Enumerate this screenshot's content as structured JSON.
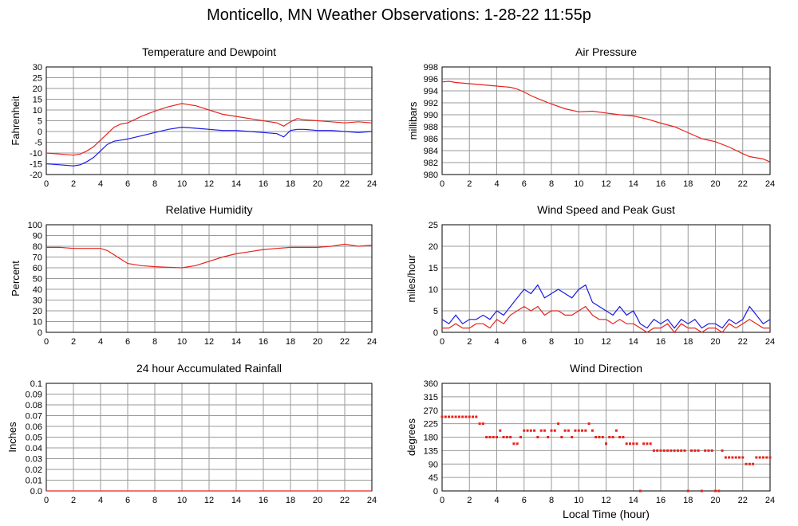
{
  "title": "Monticello, MN Weather Observations: 1-28-22 11:55p",
  "colors": {
    "primary": "#e8231e",
    "secondary": "#1a1ae6",
    "grid": "#9a9a9a"
  },
  "chart_data": [
    {
      "id": "temp",
      "type": "line",
      "title": "Temperature and Dewpoint",
      "xlabel": "",
      "ylabel": "Fahrenheit",
      "xlim": [
        0,
        24
      ],
      "ylim": [
        -20,
        30
      ],
      "xticks": [
        0,
        2,
        4,
        6,
        8,
        10,
        12,
        14,
        16,
        18,
        20,
        22,
        24
      ],
      "yticks": [
        -20,
        -15,
        -10,
        -5,
        0,
        5,
        10,
        15,
        20,
        25,
        30
      ],
      "series": [
        {
          "color": "#e8231e",
          "x": [
            0,
            1,
            2,
            2.5,
            3,
            3.5,
            4,
            4.5,
            5,
            5.5,
            6,
            7,
            8,
            9,
            10,
            10.5,
            11,
            12,
            13,
            14,
            15,
            16,
            17,
            17.5,
            18,
            18.5,
            19,
            20,
            21,
            22,
            23,
            24
          ],
          "y": [
            -10,
            -10.5,
            -11,
            -10.5,
            -9,
            -7,
            -4,
            -1,
            2,
            3.5,
            4,
            7,
            9.5,
            11.5,
            13,
            12.5,
            12,
            10,
            8,
            7,
            6,
            5,
            4,
            2.5,
            4.5,
            6,
            5.5,
            5,
            4.5,
            4,
            4.5,
            4
          ]
        },
        {
          "color": "#1a1ae6",
          "x": [
            0,
            1,
            2,
            2.5,
            3,
            3.5,
            4,
            4.5,
            5,
            5.5,
            6,
            7,
            8,
            9,
            10,
            11,
            12,
            13,
            14,
            15,
            16,
            17,
            17.5,
            18,
            18.5,
            19,
            20,
            21,
            22,
            23,
            24
          ],
          "y": [
            -15,
            -15.5,
            -16,
            -15.5,
            -14,
            -12,
            -9,
            -6,
            -4.5,
            -4,
            -3.5,
            -2,
            -0.5,
            1,
            2,
            1.5,
            1,
            0.5,
            0.5,
            0,
            -0.5,
            -1,
            -2.5,
            0.5,
            1,
            1,
            0.5,
            0.5,
            0,
            -0.5,
            0
          ]
        }
      ]
    },
    {
      "id": "pressure",
      "type": "line",
      "title": "Air Pressure",
      "xlabel": "",
      "ylabel": "millibars",
      "xlim": [
        0,
        24
      ],
      "ylim": [
        980,
        998
      ],
      "xticks": [
        0,
        2,
        4,
        6,
        8,
        10,
        12,
        14,
        16,
        18,
        20,
        22,
        24
      ],
      "yticks": [
        980,
        982,
        984,
        986,
        988,
        990,
        992,
        994,
        996,
        998
      ],
      "series": [
        {
          "color": "#e8231e",
          "x": [
            0,
            0.5,
            1,
            2,
            3,
            4,
            5,
            5.5,
            6,
            6.5,
            7,
            8,
            9,
            10,
            11,
            12,
            13,
            14,
            15,
            16,
            17,
            18,
            19,
            20,
            21,
            22,
            22.5,
            23,
            23.5,
            24
          ],
          "y": [
            995.5,
            995.6,
            995.4,
            995.2,
            995.0,
            994.8,
            994.6,
            994.3,
            993.8,
            993.2,
            992.7,
            991.8,
            991.0,
            990.5,
            990.6,
            990.3,
            990.0,
            989.8,
            989.3,
            988.6,
            988.0,
            987.0,
            986.0,
            985.5,
            984.6,
            983.5,
            983.0,
            982.8,
            982.6,
            982.1
          ]
        }
      ]
    },
    {
      "id": "humidity",
      "type": "line",
      "title": "Relative Humidity",
      "xlabel": "",
      "ylabel": "Percent",
      "xlim": [
        0,
        24
      ],
      "ylim": [
        0,
        100
      ],
      "xticks": [
        0,
        2,
        4,
        6,
        8,
        10,
        12,
        14,
        16,
        18,
        20,
        22,
        24
      ],
      "yticks": [
        0,
        10,
        20,
        30,
        40,
        50,
        60,
        70,
        80,
        90,
        100
      ],
      "series": [
        {
          "color": "#e8231e",
          "x": [
            0,
            1,
            2,
            3,
            4,
            4.5,
            5,
            5.5,
            6,
            7,
            8,
            9,
            10,
            11,
            12,
            13,
            14,
            15,
            16,
            17,
            18,
            19,
            20,
            21,
            22,
            23,
            24
          ],
          "y": [
            79,
            79,
            78,
            78,
            78,
            76,
            72,
            68,
            64,
            62,
            61,
            60.5,
            60,
            62,
            66,
            70,
            73,
            75,
            77,
            78,
            79,
            79,
            79,
            80,
            82,
            80,
            81
          ]
        }
      ]
    },
    {
      "id": "wind",
      "type": "line",
      "title": "Wind Speed and Peak Gust",
      "xlabel": "",
      "ylabel": "miles/hour",
      "xlim": [
        0,
        24
      ],
      "ylim": [
        0,
        25
      ],
      "xticks": [
        0,
        2,
        4,
        6,
        8,
        10,
        12,
        14,
        16,
        18,
        20,
        22,
        24
      ],
      "yticks": [
        0,
        5,
        10,
        15,
        20,
        25
      ],
      "series": [
        {
          "color": "#1a1ae6",
          "x": [
            0,
            0.5,
            1,
            1.5,
            2,
            2.5,
            3,
            3.5,
            4,
            4.5,
            5,
            5.5,
            6,
            6.5,
            7,
            7.5,
            8,
            8.5,
            9,
            9.5,
            10,
            10.5,
            11,
            11.5,
            12,
            12.5,
            13,
            13.5,
            14,
            14.5,
            15,
            15.5,
            16,
            16.5,
            17,
            17.5,
            18,
            18.5,
            19,
            19.5,
            20,
            20.5,
            21,
            21.5,
            22,
            22.5,
            23,
            23.5,
            24
          ],
          "y": [
            3,
            2,
            4,
            2,
            3,
            3,
            4,
            3,
            5,
            4,
            6,
            8,
            10,
            9,
            11,
            8,
            9,
            10,
            9,
            8,
            10,
            11,
            7,
            6,
            5,
            4,
            6,
            4,
            5,
            2,
            1,
            3,
            2,
            3,
            1,
            3,
            2,
            3,
            1,
            2,
            2,
            1,
            3,
            2,
            3,
            6,
            4,
            2,
            3
          ]
        },
        {
          "color": "#e8231e",
          "x": [
            0,
            0.5,
            1,
            1.5,
            2,
            2.5,
            3,
            3.5,
            4,
            4.5,
            5,
            5.5,
            6,
            6.5,
            7,
            7.5,
            8,
            8.5,
            9,
            9.5,
            10,
            10.5,
            11,
            11.5,
            12,
            12.5,
            13,
            13.5,
            14,
            14.5,
            15,
            15.5,
            16,
            16.5,
            17,
            17.5,
            18,
            18.5,
            19,
            19.5,
            20,
            20.5,
            21,
            21.5,
            22,
            22.5,
            23,
            23.5,
            24
          ],
          "y": [
            1,
            1,
            2,
            1,
            1,
            2,
            2,
            1,
            3,
            2,
            4,
            5,
            6,
            5,
            6,
            4,
            5,
            5,
            4,
            4,
            5,
            6,
            4,
            3,
            3,
            2,
            3,
            2,
            2,
            1,
            0,
            1,
            1,
            2,
            0,
            2,
            1,
            1,
            0,
            1,
            1,
            0,
            2,
            1,
            2,
            3,
            2,
            1,
            1
          ]
        }
      ]
    },
    {
      "id": "rain",
      "type": "line",
      "title": "24 hour Accumulated Rainfall",
      "xlabel": "",
      "ylabel": "Inches",
      "xlim": [
        0,
        24
      ],
      "ylim": [
        0,
        0.1
      ],
      "xticks": [
        0,
        2,
        4,
        6,
        8,
        10,
        12,
        14,
        16,
        18,
        20,
        22,
        24
      ],
      "yticks": [
        0,
        0.01,
        0.02,
        0.03,
        0.04,
        0.05,
        0.06,
        0.07,
        0.08,
        0.09,
        0.1
      ],
      "ytick_labels": [
        "0.0",
        "0.01",
        "0.02",
        "0.03",
        "0.04",
        "0.05",
        "0.06",
        "0.07",
        "0.08",
        "0.09",
        "0.1"
      ],
      "series": [
        {
          "color": "#e8231e",
          "x": [
            0,
            24
          ],
          "y": [
            0,
            0
          ]
        }
      ]
    },
    {
      "id": "direction",
      "type": "scatter",
      "title": "Wind Direction",
      "xlabel": "Local Time (hour)",
      "ylabel": "degrees",
      "xlim": [
        0,
        24
      ],
      "ylim": [
        0,
        360
      ],
      "xticks": [
        0,
        2,
        4,
        6,
        8,
        10,
        12,
        14,
        16,
        18,
        20,
        22,
        24
      ],
      "yticks": [
        0,
        45,
        90,
        135,
        180,
        225,
        270,
        315,
        360
      ],
      "series": [
        {
          "color": "#e8231e",
          "x": [
            0,
            0.25,
            0.5,
            0.75,
            1,
            1.25,
            1.5,
            1.75,
            2,
            2.25,
            2.5,
            2.75,
            3,
            3.25,
            3.5,
            3.75,
            4,
            4.25,
            4.5,
            4.75,
            5,
            5.25,
            5.5,
            5.75,
            6,
            6.25,
            6.5,
            6.75,
            7,
            7.25,
            7.5,
            7.75,
            8,
            8.25,
            8.5,
            8.75,
            9,
            9.25,
            9.5,
            9.75,
            10,
            10.25,
            10.5,
            10.75,
            11,
            11.25,
            11.5,
            11.75,
            12,
            12.25,
            12.5,
            12.75,
            13,
            13.25,
            13.5,
            13.75,
            14,
            14.25,
            14.5,
            14.75,
            15,
            15.25,
            15.5,
            15.75,
            16,
            16.25,
            16.5,
            16.75,
            17,
            17.25,
            17.5,
            17.75,
            18,
            18.25,
            18.5,
            18.75,
            19,
            19.25,
            19.5,
            19.75,
            20,
            20.25,
            20.5,
            20.75,
            21,
            21.25,
            21.5,
            21.75,
            22,
            22.25,
            22.5,
            22.75,
            23,
            23.25,
            23.5,
            23.75,
            24
          ],
          "y": [
            248,
            248,
            248,
            248,
            248,
            248,
            248,
            248,
            248,
            248,
            248,
            225,
            225,
            180,
            180,
            180,
            180,
            202,
            180,
            180,
            180,
            158,
            158,
            180,
            202,
            202,
            202,
            202,
            180,
            202,
            202,
            180,
            202,
            202,
            225,
            180,
            202,
            202,
            180,
            202,
            202,
            202,
            202,
            225,
            202,
            180,
            180,
            180,
            158,
            180,
            180,
            202,
            180,
            180,
            158,
            158,
            158,
            158,
            0,
            158,
            158,
            158,
            135,
            135,
            135,
            135,
            135,
            135,
            135,
            135,
            135,
            135,
            0,
            135,
            135,
            135,
            0,
            135,
            135,
            135,
            0,
            0,
            135,
            112,
            112,
            112,
            112,
            112,
            112,
            90,
            90,
            90,
            112,
            112,
            112,
            112,
            112
          ]
        }
      ]
    }
  ]
}
